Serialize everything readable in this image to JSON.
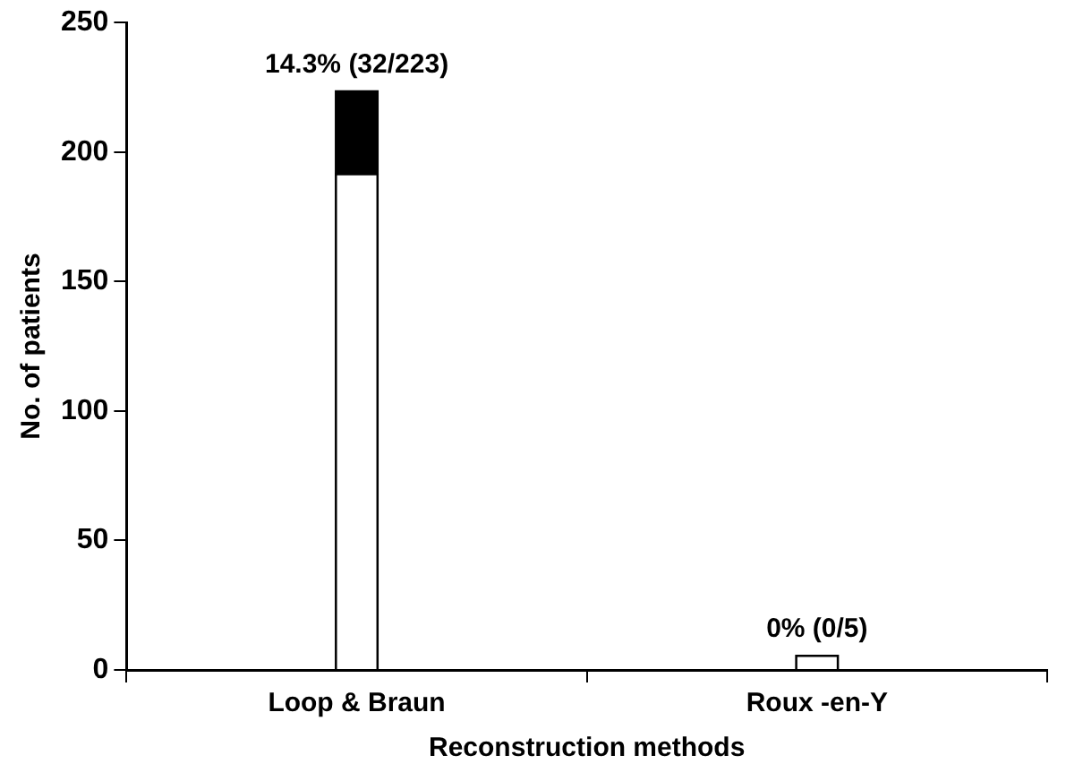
{
  "chart_data": {
    "type": "bar",
    "xlabel": "Reconstruction methods",
    "ylabel": "No. of patients",
    "categories": [
      "Loop & Braun",
      "Roux -en-Y"
    ],
    "stacked": true,
    "series": [
      {
        "color": "#ffffff",
        "values": [
          191,
          5
        ]
      },
      {
        "color": "#000000",
        "values": [
          32,
          0
        ]
      }
    ],
    "totals": [
      "14.3% (32/223)",
      "0% (0/5)"
    ],
    "ylim": [
      0,
      250
    ],
    "yticks": [
      0,
      50,
      100,
      150,
      200,
      250
    ],
    "grid": false,
    "legend": false
  }
}
